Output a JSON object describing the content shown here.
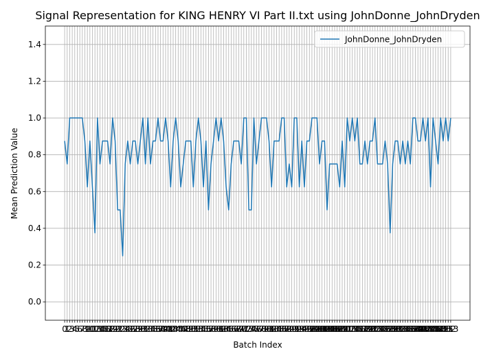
{
  "chart_data": {
    "type": "line",
    "title": "Signal Representation for KING HENRY VI Part II.txt using JohnDonne_JohnDryden",
    "x_label": "Batch Index",
    "y_label": "Mean Prediction Value",
    "x": [
      0,
      1,
      2,
      3,
      4,
      5,
      6,
      7,
      8,
      9,
      10,
      11,
      12,
      13,
      14,
      15,
      16,
      17,
      18,
      19,
      20,
      21,
      22,
      23,
      24,
      25,
      26,
      27,
      28,
      29,
      30,
      31,
      32,
      33,
      34,
      35,
      36,
      37,
      38,
      39,
      40,
      41,
      42,
      43,
      44,
      45,
      46,
      47,
      48,
      49,
      50,
      51,
      52,
      53,
      54,
      55,
      56,
      57,
      58,
      59,
      60,
      61,
      62,
      63,
      64,
      65,
      66,
      67,
      68,
      69,
      70,
      71,
      72,
      73,
      74,
      75,
      76,
      77,
      78,
      79,
      80,
      81,
      82,
      83,
      84,
      85,
      86,
      87,
      88,
      89,
      90,
      91,
      92,
      93,
      94,
      95,
      96,
      97,
      98,
      99,
      100,
      101,
      102,
      103,
      104,
      105,
      106,
      107,
      108,
      109,
      110,
      111,
      112,
      113,
      114,
      115,
      116,
      117,
      118,
      119,
      120,
      121,
      122,
      123,
      124,
      125,
      126,
      127,
      128,
      129,
      130,
      131,
      132,
      133,
      134,
      135,
      136,
      137,
      138,
      139,
      140,
      141,
      142,
      143,
      144,
      145,
      146,
      147,
      148,
      149,
      150,
      151,
      152,
      153
    ],
    "series": [
      {
        "name": "JohnDonne_JohnDryden",
        "color": "#1f77b4",
        "values": [
          0.875,
          0.75,
          1.0,
          1.0,
          1.0,
          1.0,
          1.0,
          1.0,
          0.875,
          0.625,
          0.875,
          0.625,
          0.375,
          1.0,
          0.75,
          0.875,
          0.875,
          0.875,
          0.75,
          1.0,
          0.875,
          0.5,
          0.5,
          0.25,
          0.75,
          0.875,
          0.75,
          0.875,
          0.875,
          0.75,
          0.875,
          1.0,
          0.75,
          1.0,
          0.75,
          0.875,
          0.875,
          1.0,
          0.875,
          0.875,
          1.0,
          0.875,
          0.625,
          0.875,
          1.0,
          0.875,
          0.625,
          0.75,
          0.875,
          0.875,
          0.875,
          0.625,
          0.875,
          1.0,
          0.875,
          0.625,
          0.875,
          0.5,
          0.75,
          0.875,
          1.0,
          0.875,
          1.0,
          0.875,
          0.625,
          0.5,
          0.75,
          0.875,
          0.875,
          0.875,
          0.75,
          1.0,
          1.0,
          0.5,
          0.5,
          1.0,
          0.75,
          0.875,
          1.0,
          1.0,
          1.0,
          0.875,
          0.625,
          0.875,
          0.875,
          0.875,
          1.0,
          1.0,
          0.625,
          0.75,
          0.625,
          1.0,
          1.0,
          0.625,
          0.875,
          0.625,
          0.875,
          0.875,
          1.0,
          1.0,
          1.0,
          0.75,
          0.875,
          0.875,
          0.5,
          0.75,
          0.75,
          0.75,
          0.75,
          0.625,
          0.875,
          0.625,
          1.0,
          0.875,
          1.0,
          0.875,
          1.0,
          0.75,
          0.75,
          0.875,
          0.75,
          0.875,
          0.875,
          1.0,
          0.75,
          0.75,
          0.75,
          0.875,
          0.75,
          0.375,
          0.75,
          0.875,
          0.875,
          0.75,
          0.875,
          0.75,
          0.875,
          0.75,
          1.0,
          1.0,
          0.875,
          0.875,
          1.0,
          0.875,
          1.0,
          0.625,
          1.0,
          0.875,
          0.75,
          1.0,
          0.875,
          1.0,
          0.875,
          1.0
        ]
      }
    ],
    "xlim": [
      -7.65,
      160.65
    ],
    "xticks": [
      0,
      1,
      2,
      3,
      4,
      5,
      6,
      7,
      8,
      9,
      10,
      11,
      12,
      13,
      14,
      15,
      16,
      17,
      18,
      19,
      20,
      21,
      22,
      23,
      24,
      25,
      26,
      27,
      28,
      29,
      30,
      31,
      32,
      33,
      34,
      35,
      36,
      37,
      38,
      39,
      40,
      41,
      42,
      43,
      44,
      45,
      46,
      47,
      48,
      49,
      50,
      51,
      52,
      53,
      54,
      55,
      56,
      57,
      58,
      59,
      60,
      61,
      62,
      63,
      64,
      65,
      66,
      67,
      68,
      69,
      70,
      71,
      72,
      73,
      74,
      75,
      76,
      77,
      78,
      79,
      80,
      81,
      82,
      83,
      84,
      85,
      86,
      87,
      88,
      89,
      90,
      91,
      92,
      93,
      94,
      95,
      96,
      97,
      98,
      99,
      100,
      101,
      102,
      103,
      104,
      105,
      106,
      107,
      108,
      109,
      110,
      111,
      112,
      113,
      114,
      115,
      116,
      117,
      118,
      119,
      120,
      121,
      122,
      123,
      124,
      125,
      126,
      127,
      128,
      129,
      130,
      131,
      132,
      133,
      134,
      135,
      136,
      137,
      138,
      139,
      140,
      141,
      142,
      143,
      144,
      145,
      146,
      147,
      148,
      149,
      150,
      151,
      152,
      153
    ],
    "ylim": [
      -0.1,
      1.5
    ],
    "yticks": [
      {
        "value": 0,
        "label": "0.0"
      },
      {
        "value": 0.2,
        "label": "0.2"
      },
      {
        "value": 0.4,
        "label": "0.4"
      },
      {
        "value": 0.6,
        "label": "0.6"
      },
      {
        "value": 0.8,
        "label": "0.8"
      },
      {
        "value": 1.0,
        "label": "1.0"
      },
      {
        "value": 1.2,
        "label": "1.2"
      },
      {
        "value": 1.4,
        "label": "1.4"
      }
    ],
    "grid": true,
    "legend": "upper right"
  }
}
